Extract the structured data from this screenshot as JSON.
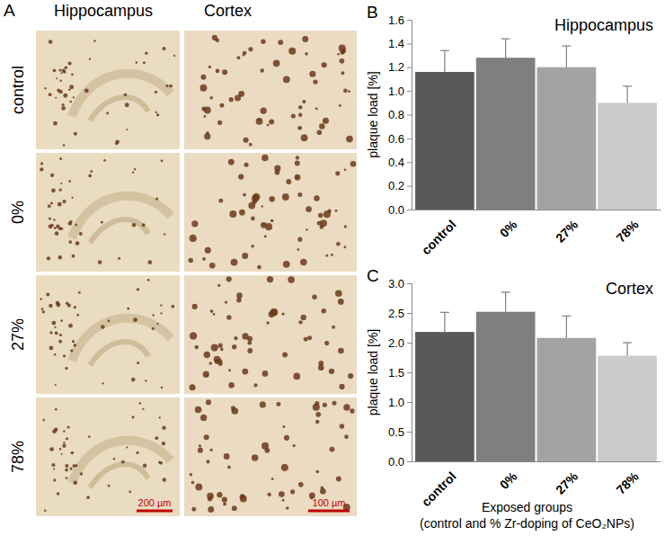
{
  "chart_data": [
    {
      "type": "bar",
      "title": "Hippocampus",
      "annotations": [
        "B"
      ],
      "y_label": "plaque load [%]",
      "categories": [
        "control",
        "0%",
        "27%",
        "78%"
      ],
      "values": [
        1.16,
        1.28,
        1.2,
        0.9
      ],
      "errors": [
        0.18,
        0.16,
        0.18,
        0.14
      ],
      "colors": [
        "#595959",
        "#7f7f7f",
        "#a3a3a3",
        "#cbcbcb"
      ],
      "ylim": [
        0,
        1.6
      ],
      "yticks": [
        {
          "value": 0,
          "label": "0.0"
        },
        0.2,
        0.4,
        0.6,
        0.8,
        {
          "value": 1,
          "label": "1.0"
        },
        1.2,
        1.4,
        1.6
      ],
      "grid": false
    },
    {
      "type": "bar",
      "title": "Cortex",
      "annotations": [
        "C"
      ],
      "y_label": "plaque load [%]",
      "x_label": [
        "Exposed groups",
        "(control and % Zr-doping of CeO₂NPs)"
      ],
      "categories": [
        "control",
        "0%",
        "27%",
        "78%"
      ],
      "values": [
        2.18,
        2.52,
        2.08,
        1.78
      ],
      "errors": [
        0.33,
        0.33,
        0.37,
        0.22
      ],
      "colors": [
        "#595959",
        "#7f7f7f",
        "#a3a3a3",
        "#cbcbcb"
      ],
      "ylim": [
        0,
        3
      ],
      "yticks": [
        {
          "value": 0,
          "label": "0.0"
        },
        0.5,
        {
          "value": 1,
          "label": "1.0"
        },
        1.5,
        {
          "value": 2,
          "label": "2.0"
        },
        2.5,
        {
          "value": 3,
          "label": "3.0"
        }
      ],
      "grid": false
    }
  ],
  "panel_a": {
    "label": "A",
    "columns": [
      "Hippocampus",
      "Cortex"
    ],
    "rows": [
      "control",
      "0%",
      "27%",
      "78%"
    ],
    "scale_bars": [
      "200 µm",
      "100 µm"
    ]
  }
}
